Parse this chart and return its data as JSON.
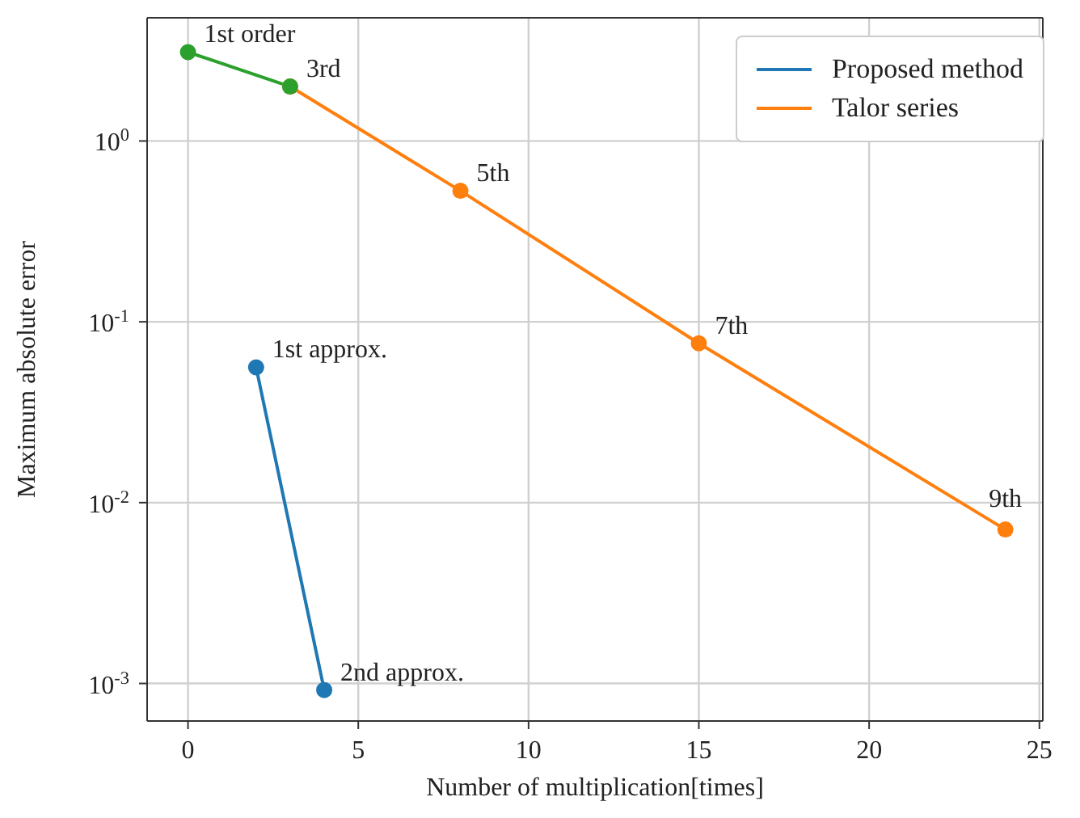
{
  "chart_data": {
    "type": "line",
    "xlabel": "Number of multiplication[times]",
    "ylabel": "Maximum absolute error",
    "xlim": [
      -1.2,
      25.1
    ],
    "xticks": [
      0,
      5,
      10,
      15,
      20,
      25
    ],
    "ylim": [
      0.00062,
      4.8
    ],
    "log": true,
    "yticks": [
      {
        "value": 1,
        "label": "10$^{0}$"
      },
      {
        "value": 0.1,
        "label": "10$^{-1}$"
      },
      {
        "value": 0.01,
        "label": "10$^{-2}$"
      },
      {
        "value": 0.001,
        "label": "10$^{-3}$"
      }
    ],
    "grid": true,
    "legend": "top right",
    "marker": "circle",
    "line_style": "solid",
    "series": [
      {
        "name": "Proposed method",
        "color": "#1f77b4",
        "x": [
          2,
          4
        ],
        "values": [
          0.056,
          0.00092
        ]
      },
      {
        "name": "Talor series",
        "color": "#ff7f0e",
        "x": [
          3,
          8,
          15,
          24
        ],
        "values": [
          2.0,
          0.53,
          0.076,
          0.0071
        ]
      },
      {
        "color": "#2ca02c",
        "x": [
          0,
          3
        ],
        "values": [
          3.1,
          2.0
        ]
      }
    ],
    "annotations": [
      {
        "text": "1st order",
        "x": 0,
        "y": 3.1
      },
      {
        "text": "3rd",
        "x": 3,
        "y": 2.0
      },
      {
        "text": "5th",
        "x": 8,
        "y": 0.53
      },
      {
        "text": "7th",
        "x": 15,
        "y": 0.076
      },
      {
        "text": "9th",
        "x": 24,
        "y": 0.0071
      },
      {
        "text": "1st approx.",
        "x": 2,
        "y": 0.056
      },
      {
        "text": "2nd approx.",
        "x": 4,
        "y": 0.00092
      }
    ]
  }
}
